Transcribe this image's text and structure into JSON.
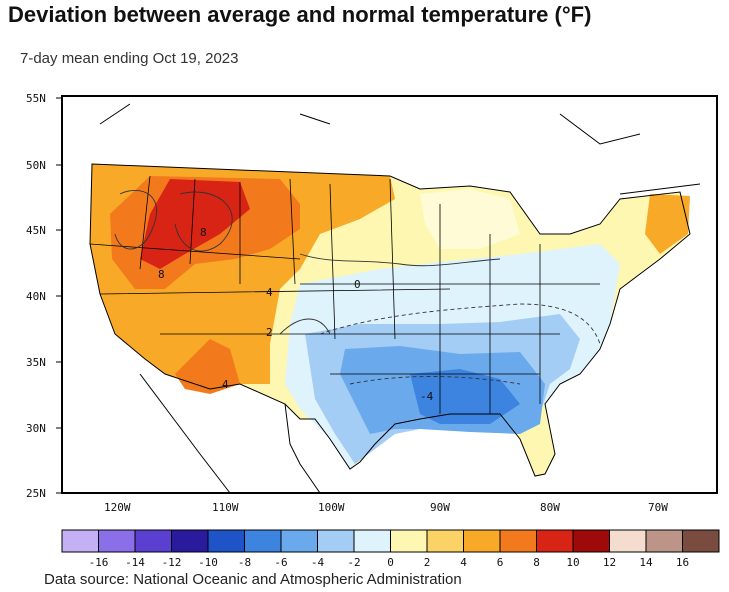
{
  "title": "Deviation between average and normal temperature (°F)",
  "subtitle": "7-day mean ending Oct 19, 2023",
  "source": "Data source: National Oceanic and Atmospheric Administration",
  "map": {
    "lat_labels": [
      "55N",
      "50N",
      "45N",
      "40N",
      "35N",
      "30N",
      "25N"
    ],
    "lon_labels": [
      "120W",
      "110W",
      "100W",
      "90W",
      "80W",
      "70W"
    ],
    "contour_labels": [
      "8",
      "8",
      "4",
      "2",
      "0",
      "-4",
      "4"
    ]
  },
  "legend": {
    "ticks": [
      "-16",
      "-14",
      "-12",
      "-10",
      "-8",
      "-6",
      "-4",
      "-2",
      "0",
      "2",
      "4",
      "6",
      "8",
      "10",
      "12",
      "14",
      "16"
    ],
    "colors": [
      "#c3b0f5",
      "#8a6fe8",
      "#5a3fd0",
      "#2a1a9c",
      "#1f54c8",
      "#3d84e0",
      "#6aa9ec",
      "#a3cdf4",
      "#dff3fd",
      "#fdf7b2",
      "#fbd266",
      "#f9a928",
      "#f27a1d",
      "#d82414",
      "#9e0a0a",
      "#f4dccf",
      "#bc9488",
      "#7a4c40"
    ]
  }
}
